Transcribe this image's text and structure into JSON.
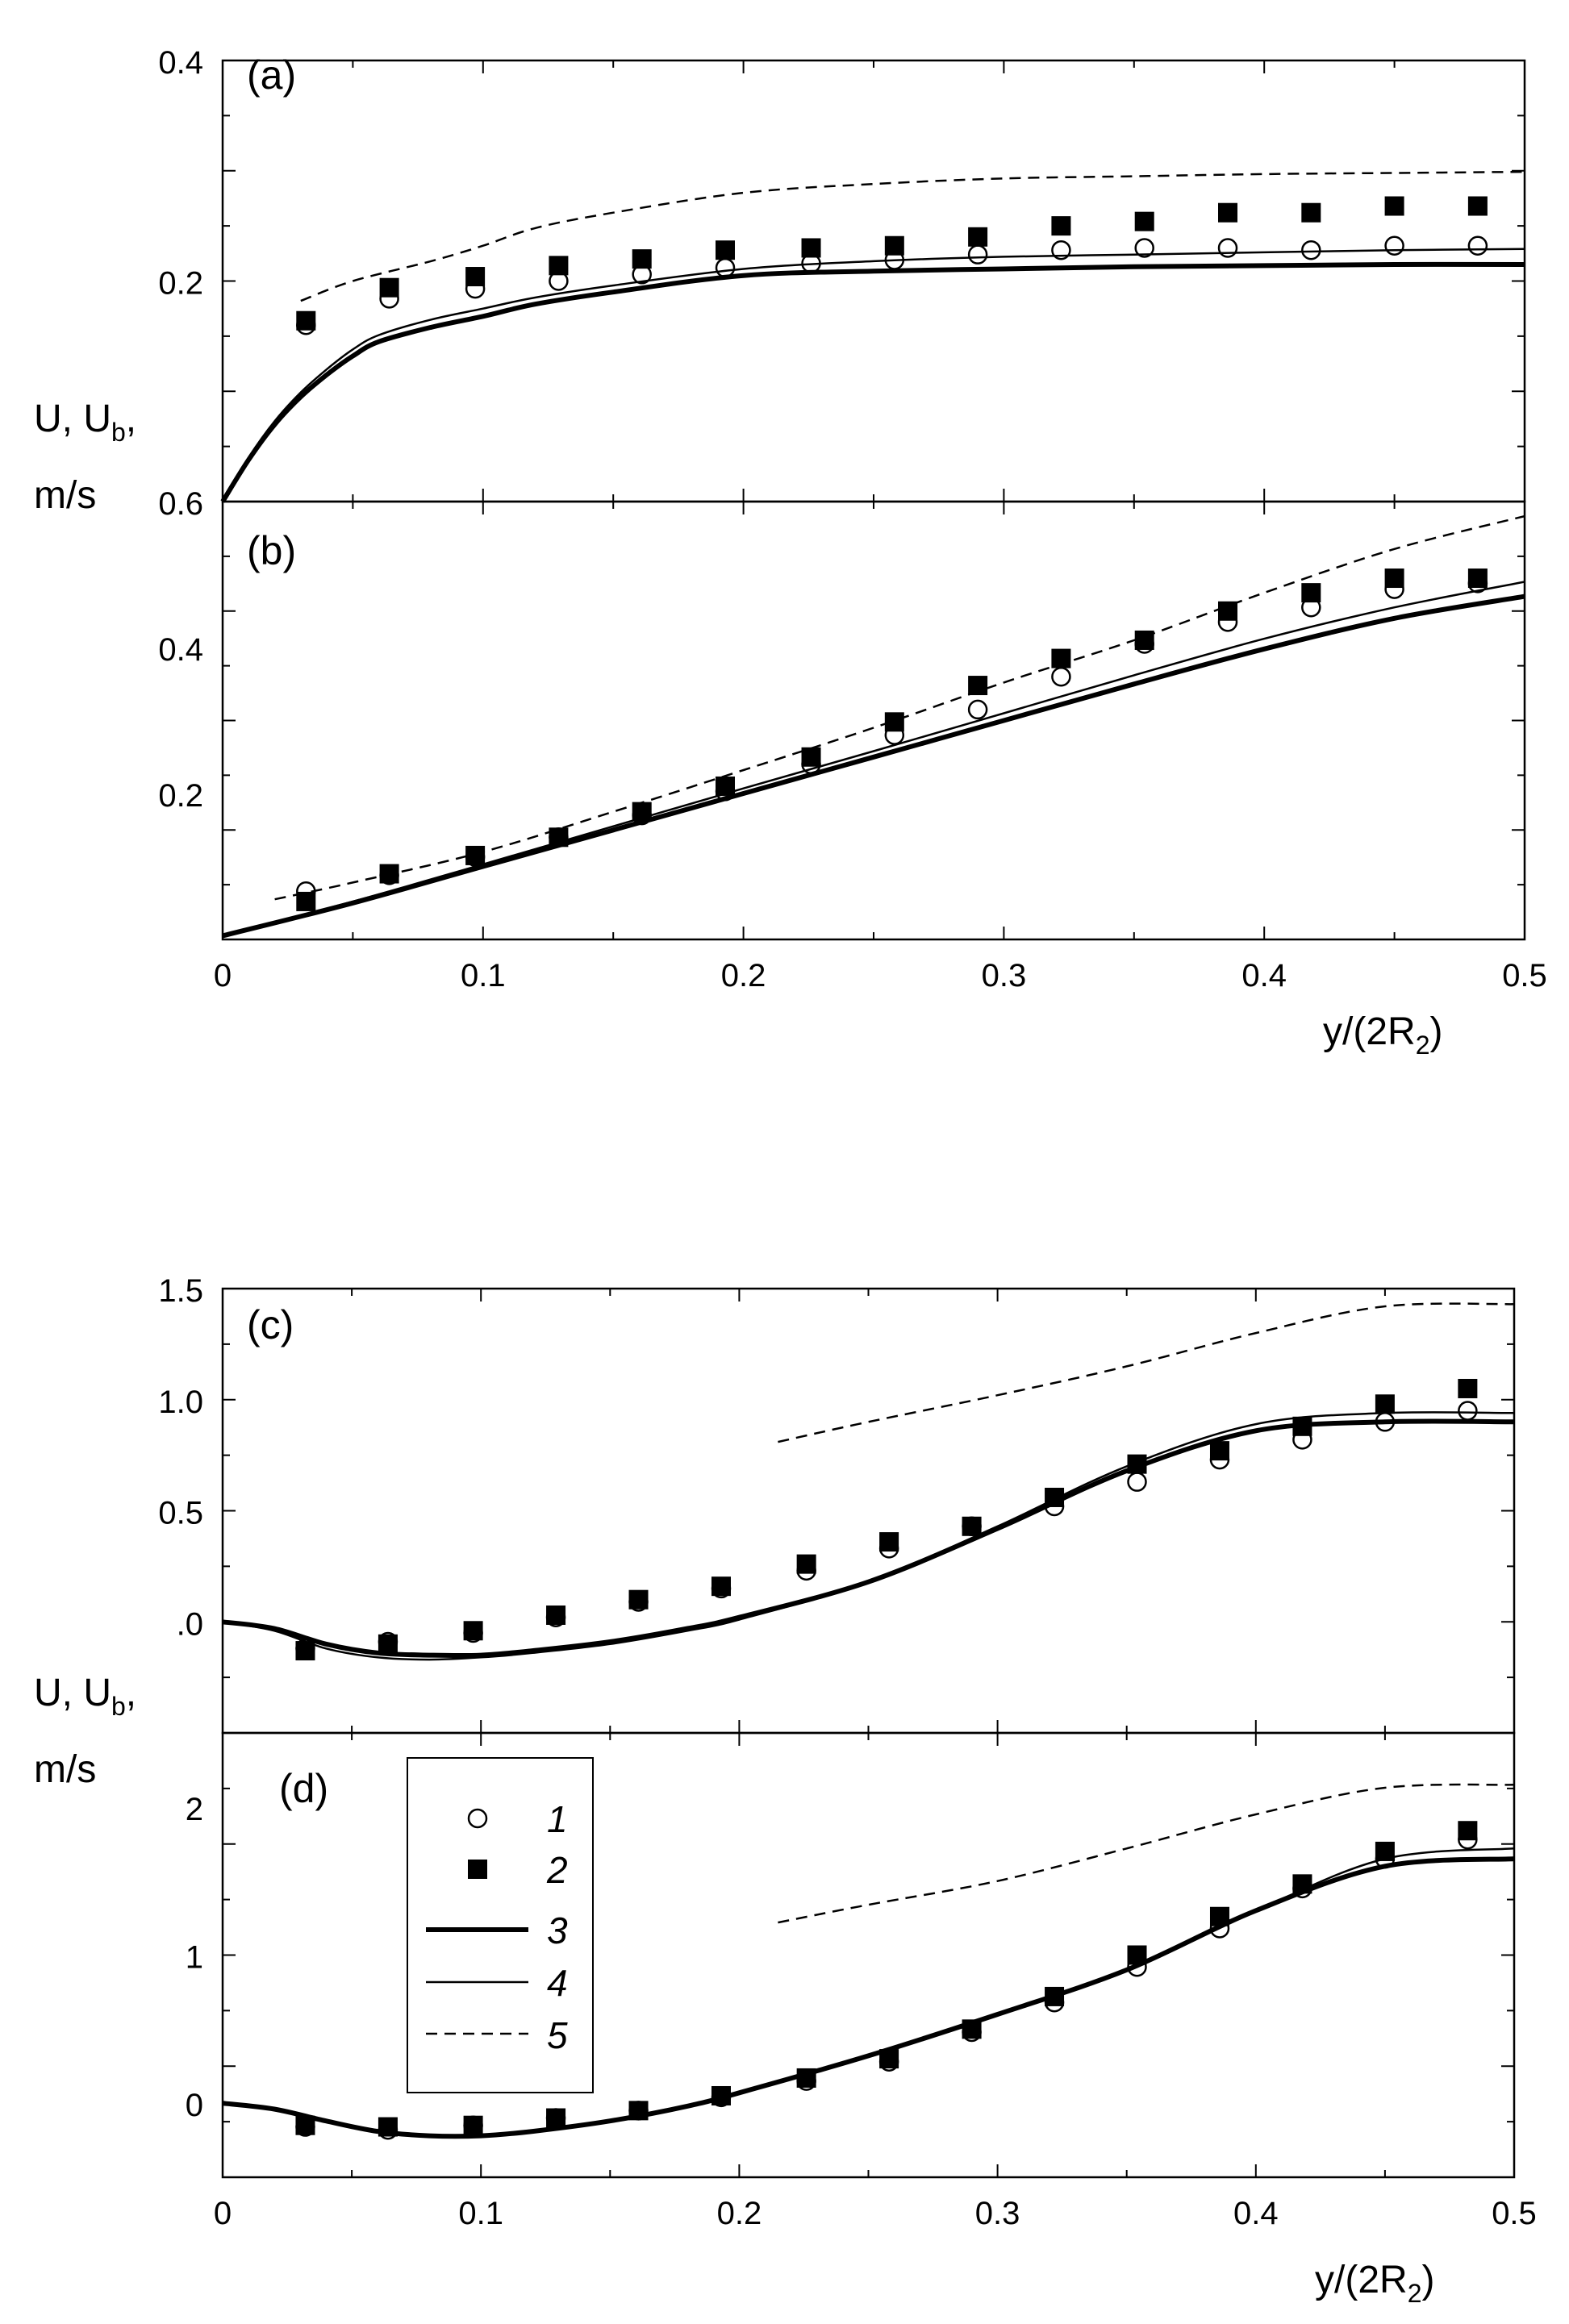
{
  "figure": {
    "ylabel_main": "U, U",
    "ylabel_sub": "b",
    "ylabel_tail": ",",
    "ylabel_unit": "m/s",
    "xlabel_main": "y/(2R",
    "xlabel_sub": "2",
    "xlabel_tail": ")"
  },
  "legend": {
    "items": [
      {
        "label": "1",
        "kind": "open-circle"
      },
      {
        "label": "2",
        "kind": "filled-square"
      },
      {
        "label": "3",
        "kind": "thick-line"
      },
      {
        "label": "4",
        "kind": "thin-line"
      },
      {
        "label": "5",
        "kind": "dashed-line"
      }
    ]
  },
  "chart_data": [
    {
      "id": "a",
      "panel_label": "(a)",
      "type": "line",
      "xlim": [
        0,
        0.5
      ],
      "ylim": [
        0.0,
        0.4
      ],
      "x_ticks": [],
      "y_ticks": [
        "0.2",
        "0.4"
      ],
      "y_tick_values": [
        0.2,
        0.4
      ],
      "series": [
        {
          "name": "1",
          "style": "open-circle",
          "x": [
            0.032,
            0.064,
            0.097,
            0.129,
            0.161,
            0.193,
            0.226,
            0.258,
            0.29,
            0.322,
            0.354,
            0.386,
            0.418,
            0.45,
            0.482
          ],
          "y": [
            0.16,
            0.184,
            0.193,
            0.2,
            0.206,
            0.212,
            0.216,
            0.219,
            0.224,
            0.228,
            0.23,
            0.23,
            0.228,
            0.232,
            0.232
          ]
        },
        {
          "name": "2",
          "style": "filled-square",
          "x": [
            0.032,
            0.064,
            0.097,
            0.129,
            0.161,
            0.193,
            0.226,
            0.258,
            0.29,
            0.322,
            0.354,
            0.386,
            0.418,
            0.45,
            0.482
          ],
          "y": [
            0.164,
            0.194,
            0.204,
            0.214,
            0.22,
            0.228,
            0.23,
            0.232,
            0.24,
            0.25,
            0.254,
            0.262,
            0.262,
            0.268,
            0.268
          ]
        },
        {
          "name": "3",
          "style": "thick-line",
          "x": [
            0,
            0.01,
            0.02,
            0.03,
            0.04,
            0.05,
            0.06,
            0.08,
            0.1,
            0.12,
            0.15,
            0.2,
            0.25,
            0.3,
            0.35,
            0.4,
            0.45,
            0.5
          ],
          "y": [
            0.0,
            0.038,
            0.07,
            0.095,
            0.115,
            0.132,
            0.145,
            0.158,
            0.168,
            0.179,
            0.19,
            0.205,
            0.209,
            0.211,
            0.213,
            0.214,
            0.215,
            0.215
          ]
        },
        {
          "name": "4",
          "style": "thin-line",
          "x": [
            0,
            0.01,
            0.02,
            0.03,
            0.04,
            0.05,
            0.06,
            0.08,
            0.1,
            0.12,
            0.15,
            0.2,
            0.25,
            0.3,
            0.35,
            0.4,
            0.45,
            0.5
          ],
          "y": [
            0.0,
            0.04,
            0.073,
            0.099,
            0.12,
            0.138,
            0.151,
            0.165,
            0.175,
            0.185,
            0.196,
            0.211,
            0.218,
            0.222,
            0.224,
            0.226,
            0.228,
            0.229
          ]
        },
        {
          "name": "5",
          "style": "dashed-line",
          "x": [
            0.03,
            0.05,
            0.08,
            0.1,
            0.12,
            0.15,
            0.2,
            0.25,
            0.3,
            0.35,
            0.4,
            0.45,
            0.5
          ],
          "y": [
            0.182,
            0.2,
            0.218,
            0.232,
            0.248,
            0.262,
            0.28,
            0.288,
            0.293,
            0.295,
            0.297,
            0.298,
            0.299
          ]
        }
      ]
    },
    {
      "id": "b",
      "panel_label": "(b)",
      "type": "line",
      "xlim": [
        0,
        0.5
      ],
      "ylim": [
        0.0,
        0.6
      ],
      "x_ticks": [
        "0",
        "0.1",
        "0.2",
        "0.3",
        "0.4",
        "0.5"
      ],
      "x_tick_values": [
        0,
        0.1,
        0.2,
        0.3,
        0.4,
        0.5
      ],
      "y_ticks": [
        "0.2",
        "0.4",
        "0.6"
      ],
      "y_tick_values": [
        0.2,
        0.4,
        0.6
      ],
      "series": [
        {
          "name": "1",
          "style": "open-circle",
          "x": [
            0.032,
            0.064,
            0.097,
            0.129,
            0.161,
            0.193,
            0.226,
            0.258,
            0.29,
            0.322,
            0.354,
            0.386,
            0.418,
            0.45,
            0.482
          ],
          "y": [
            0.066,
            0.088,
            0.113,
            0.14,
            0.17,
            0.203,
            0.24,
            0.28,
            0.315,
            0.36,
            0.405,
            0.435,
            0.455,
            0.48,
            0.488
          ]
        },
        {
          "name": "2",
          "style": "filled-square",
          "x": [
            0.032,
            0.064,
            0.097,
            0.129,
            0.161,
            0.193,
            0.226,
            0.258,
            0.29,
            0.322,
            0.354,
            0.386,
            0.418,
            0.45,
            0.482
          ],
          "y": [
            0.052,
            0.09,
            0.115,
            0.14,
            0.175,
            0.21,
            0.25,
            0.298,
            0.348,
            0.385,
            0.41,
            0.45,
            0.475,
            0.495,
            0.495
          ]
        },
        {
          "name": "3",
          "style": "thick-line",
          "x": [
            0,
            0.05,
            0.1,
            0.15,
            0.2,
            0.25,
            0.3,
            0.35,
            0.4,
            0.45,
            0.5
          ],
          "y": [
            0.005,
            0.05,
            0.1,
            0.15,
            0.2,
            0.25,
            0.3,
            0.35,
            0.398,
            0.44,
            0.47
          ]
        },
        {
          "name": "4",
          "style": "thin-line",
          "x": [
            0,
            0.05,
            0.1,
            0.15,
            0.2,
            0.25,
            0.3,
            0.35,
            0.4,
            0.45,
            0.5
          ],
          "y": [
            0.005,
            0.052,
            0.103,
            0.155,
            0.207,
            0.258,
            0.31,
            0.362,
            0.412,
            0.455,
            0.49
          ]
        },
        {
          "name": "5",
          "style": "dashed-line",
          "x": [
            0.02,
            0.05,
            0.1,
            0.15,
            0.2,
            0.25,
            0.3,
            0.35,
            0.4,
            0.45,
            0.5
          ],
          "y": [
            0.055,
            0.078,
            0.12,
            0.175,
            0.232,
            0.29,
            0.352,
            0.41,
            0.475,
            0.535,
            0.58
          ]
        }
      ]
    },
    {
      "id": "c",
      "panel_label": "(c)",
      "type": "line",
      "xlim": [
        0,
        0.5
      ],
      "ylim": [
        -0.5,
        1.5
      ],
      "x_ticks": [],
      "y_ticks": [
        ".0",
        "0.5",
        "1.0",
        "1.5"
      ],
      "y_tick_values": [
        0,
        0.5,
        1.0,
        1.5
      ],
      "series": [
        {
          "name": "1",
          "style": "open-circle",
          "x": [
            0.032,
            0.064,
            0.097,
            0.129,
            0.161,
            0.193,
            0.226,
            0.258,
            0.29,
            0.322,
            0.354,
            0.386,
            0.418,
            0.45,
            0.482
          ],
          "y": [
            -0.12,
            -0.09,
            -0.05,
            0.02,
            0.09,
            0.15,
            0.23,
            0.33,
            0.43,
            0.52,
            0.63,
            0.73,
            0.82,
            0.9,
            0.95
          ]
        },
        {
          "name": "2",
          "style": "filled-square",
          "x": [
            0.032,
            0.064,
            0.097,
            0.129,
            0.161,
            0.193,
            0.226,
            0.258,
            0.29,
            0.322,
            0.354,
            0.386,
            0.418,
            0.45,
            0.482
          ],
          "y": [
            -0.13,
            -0.1,
            -0.04,
            0.03,
            0.1,
            0.16,
            0.26,
            0.36,
            0.43,
            0.56,
            0.71,
            0.77,
            0.88,
            0.98,
            1.05
          ]
        },
        {
          "name": "3",
          "style": "thick-line",
          "x": [
            0,
            0.02,
            0.04,
            0.06,
            0.08,
            0.1,
            0.12,
            0.15,
            0.18,
            0.2,
            0.25,
            0.3,
            0.35,
            0.4,
            0.45,
            0.5
          ],
          "y": [
            0.0,
            -0.03,
            -0.1,
            -0.14,
            -0.15,
            -0.15,
            -0.13,
            -0.09,
            -0.03,
            0.02,
            0.18,
            0.42,
            0.68,
            0.86,
            0.9,
            0.9
          ]
        },
        {
          "name": "4",
          "style": "thin-line",
          "x": [
            0,
            0.02,
            0.04,
            0.06,
            0.08,
            0.1,
            0.12,
            0.15,
            0.18,
            0.2,
            0.25,
            0.3,
            0.35,
            0.4,
            0.45,
            0.5
          ],
          "y": [
            0.0,
            -0.04,
            -0.12,
            -0.16,
            -0.17,
            -0.16,
            -0.14,
            -0.1,
            -0.04,
            0.01,
            0.18,
            0.43,
            0.7,
            0.89,
            0.94,
            0.94
          ]
        },
        {
          "name": "5",
          "style": "dashed-line",
          "x": [
            0.215,
            0.25,
            0.3,
            0.35,
            0.4,
            0.45,
            0.5
          ],
          "y": [
            0.81,
            0.9,
            1.02,
            1.15,
            1.3,
            1.42,
            1.43
          ]
        }
      ]
    },
    {
      "id": "d",
      "panel_label": "(d)",
      "type": "line",
      "xlim": [
        0,
        0.5
      ],
      "ylim": [
        -0.5,
        2.5
      ],
      "x_ticks": [
        "0",
        "0.1",
        "0.2",
        "0.3",
        "0.4",
        "0.5"
      ],
      "x_tick_values": [
        0,
        0.1,
        0.2,
        0.3,
        0.4,
        0.5
      ],
      "y_ticks": [
        "0",
        "1",
        "2"
      ],
      "y_tick_values": [
        0,
        1,
        2
      ],
      "series": [
        {
          "name": "1",
          "style": "open-circle",
          "x": [
            0.032,
            0.064,
            0.097,
            0.129,
            0.161,
            0.193,
            0.226,
            0.258,
            0.29,
            0.322,
            0.354,
            0.386,
            0.418,
            0.45,
            0.482
          ],
          "y": [
            -0.16,
            -0.18,
            -0.15,
            -0.1,
            -0.05,
            0.04,
            0.15,
            0.28,
            0.48,
            0.68,
            0.92,
            1.18,
            1.45,
            1.65,
            1.78
          ]
        },
        {
          "name": "2",
          "style": "filled-square",
          "x": [
            0.032,
            0.064,
            0.097,
            0.129,
            0.161,
            0.193,
            0.226,
            0.258,
            0.29,
            0.322,
            0.354,
            0.386,
            0.418,
            0.45,
            0.482
          ],
          "y": [
            -0.15,
            -0.16,
            -0.15,
            -0.1,
            -0.05,
            0.05,
            0.17,
            0.3,
            0.5,
            0.72,
            1.0,
            1.26,
            1.48,
            1.7,
            1.84
          ]
        },
        {
          "name": "3",
          "style": "thick-line",
          "x": [
            0,
            0.02,
            0.04,
            0.06,
            0.08,
            0.1,
            0.12,
            0.15,
            0.18,
            0.2,
            0.25,
            0.3,
            0.35,
            0.4,
            0.45,
            0.5
          ],
          "y": [
            0.0,
            -0.04,
            -0.12,
            -0.19,
            -0.22,
            -0.22,
            -0.19,
            -0.12,
            -0.02,
            0.07,
            0.32,
            0.6,
            0.9,
            1.3,
            1.6,
            1.65
          ]
        },
        {
          "name": "4",
          "style": "thin-line",
          "x": [
            0,
            0.02,
            0.04,
            0.06,
            0.08,
            0.1,
            0.12,
            0.15,
            0.18,
            0.2,
            0.25,
            0.3,
            0.35,
            0.4,
            0.45,
            0.5
          ],
          "y": [
            0.0,
            -0.04,
            -0.12,
            -0.19,
            -0.22,
            -0.22,
            -0.19,
            -0.12,
            -0.02,
            0.07,
            0.32,
            0.6,
            0.9,
            1.3,
            1.65,
            1.72
          ]
        },
        {
          "name": "5",
          "style": "dashed-line",
          "x": [
            0.215,
            0.25,
            0.3,
            0.35,
            0.4,
            0.45,
            0.5
          ],
          "y": [
            1.22,
            1.34,
            1.5,
            1.72,
            1.95,
            2.13,
            2.15
          ]
        }
      ]
    }
  ]
}
